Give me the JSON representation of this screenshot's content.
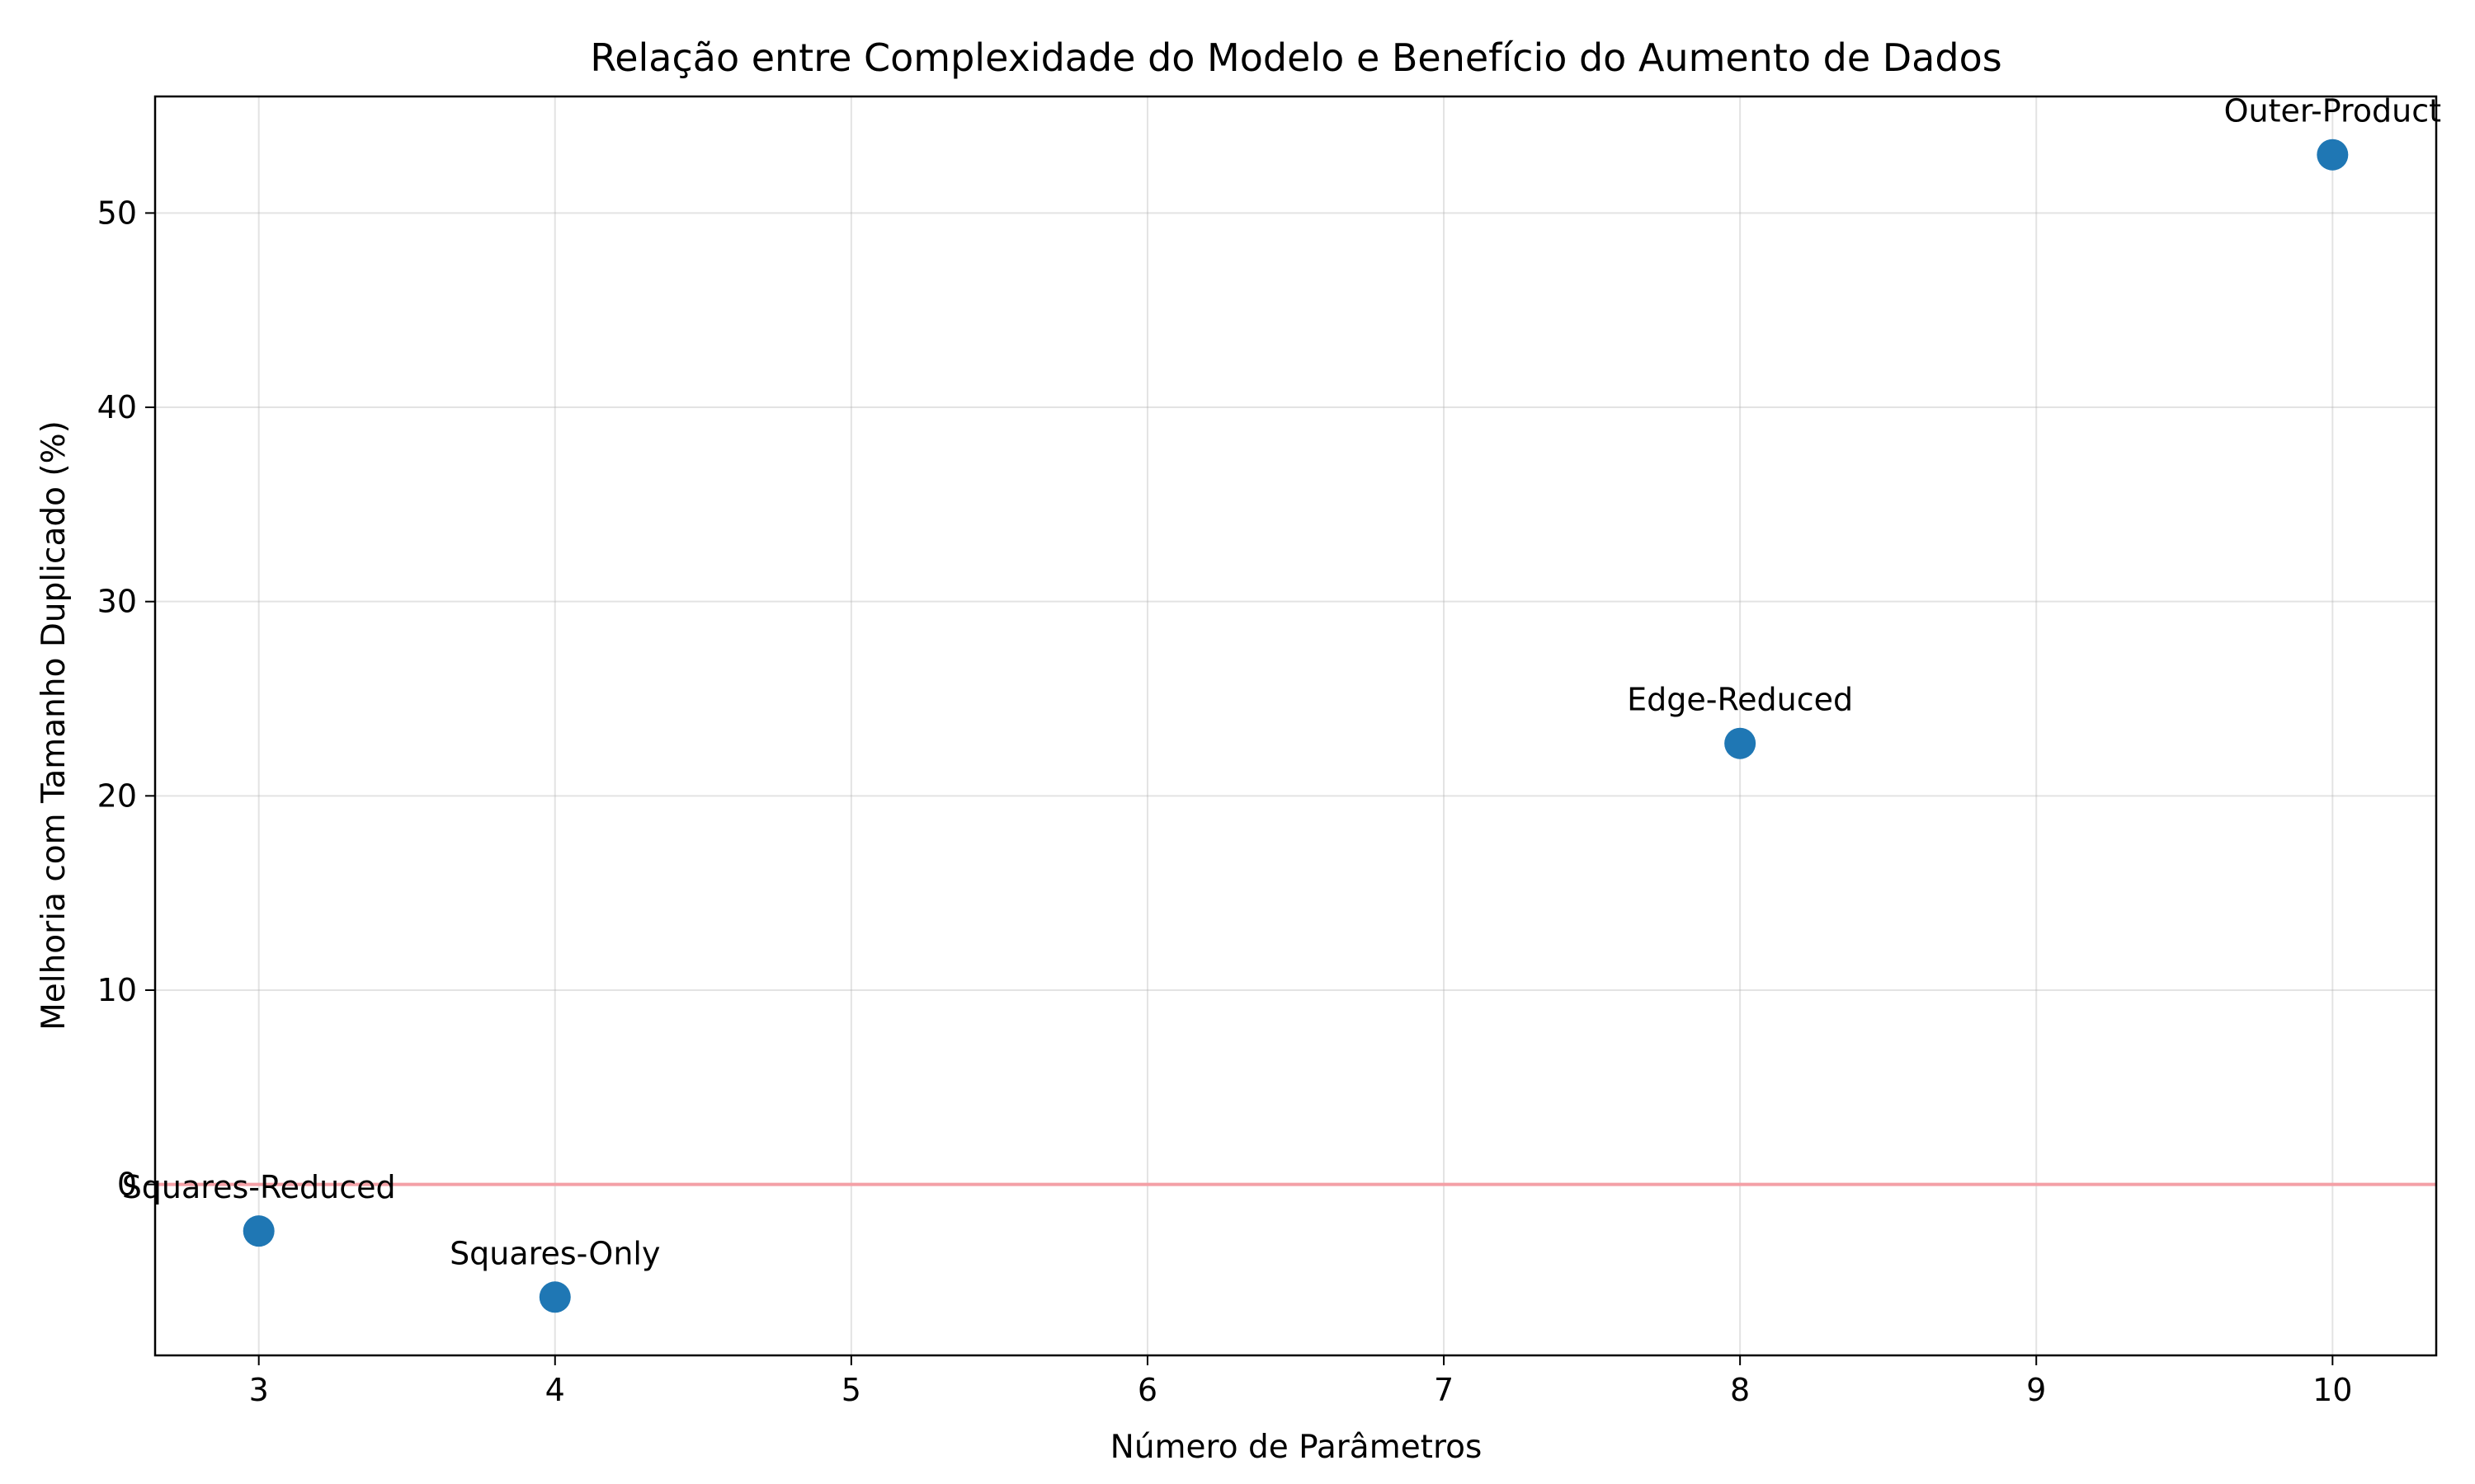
{
  "chart_data": {
    "type": "scatter",
    "title": "Relação entre Complexidade do Modelo e Benefício do Aumento de Dados",
    "xlabel": "Número de Parâmetros",
    "ylabel": "Melhoria com Tamanho Duplicado (%)",
    "xlim": [
      2.65,
      10.35
    ],
    "ylim": [
      -8.8,
      56
    ],
    "xticks": [
      3,
      4,
      5,
      6,
      7,
      8,
      9,
      10
    ],
    "yticks": [
      0,
      10,
      20,
      30,
      40,
      50
    ],
    "grid": true,
    "reference_line": {
      "y": 0,
      "color": "#f4a0a6"
    },
    "marker_color": "#1f77b4",
    "points": [
      {
        "label": "Squares-Reduced",
        "x": 3,
        "y": -2.4
      },
      {
        "label": "Squares-Only",
        "x": 4,
        "y": -5.8
      },
      {
        "label": "Edge-Reduced",
        "x": 8,
        "y": 22.7
      },
      {
        "label": "Outer-Product",
        "x": 10,
        "y": 53.0
      }
    ]
  }
}
